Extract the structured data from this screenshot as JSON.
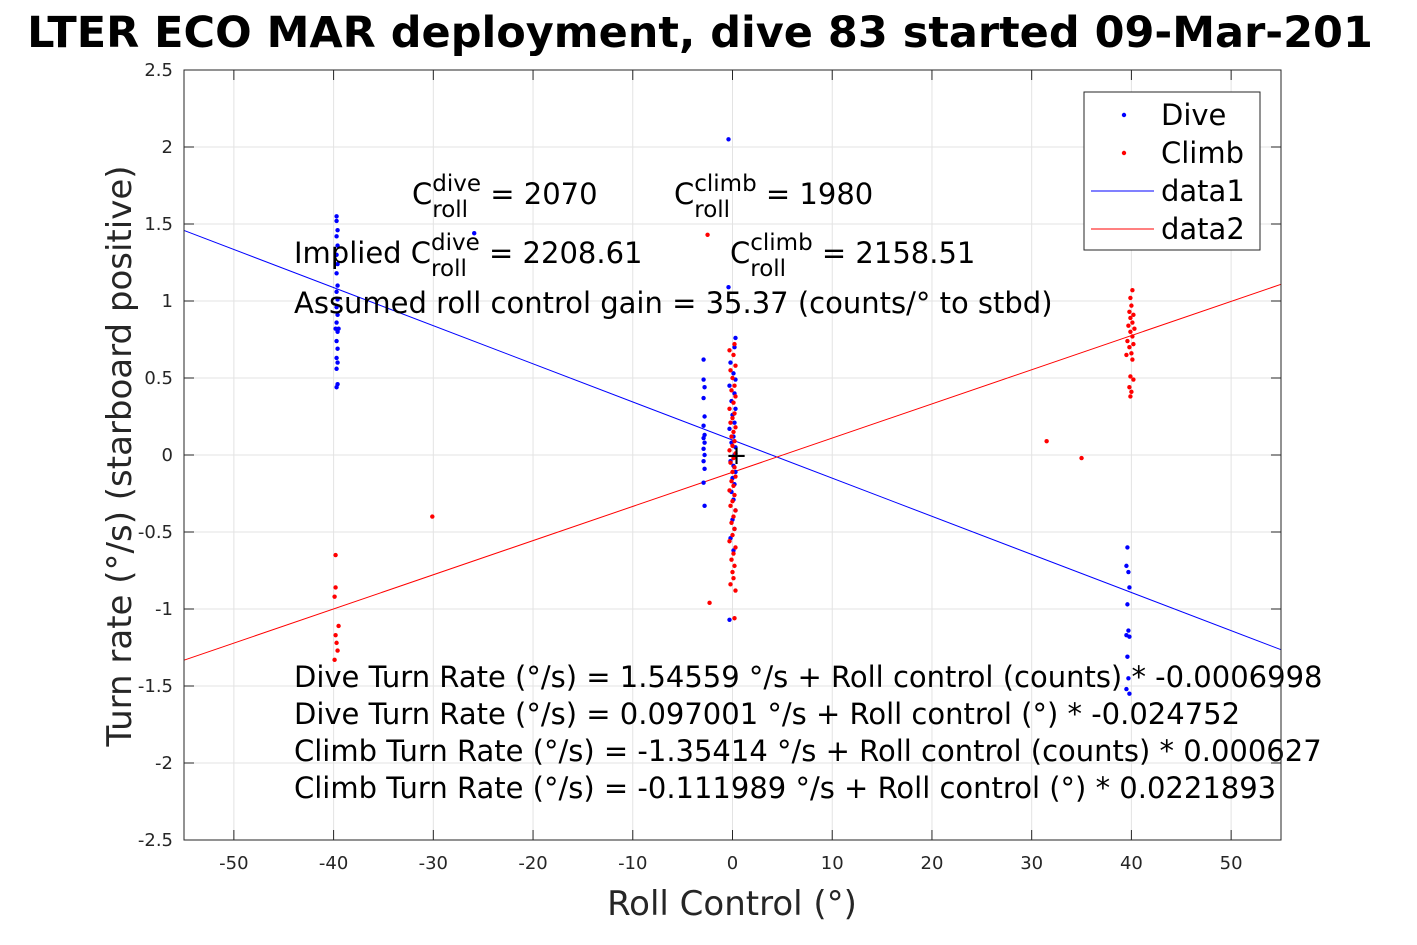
{
  "chart_data": {
    "type": "scatter",
    "title": "LTER ECO MAR deployment, dive 83 started 09-Mar-201",
    "xlabel": "Roll Control (°)",
    "ylabel": "Turn rate (°/s) (starboard positive)",
    "xlim": [
      -55,
      55
    ],
    "ylim": [
      -2.5,
      2.5
    ],
    "xticks": [
      -50,
      -40,
      -30,
      -20,
      -10,
      0,
      10,
      20,
      30,
      40,
      50
    ],
    "yticks": [
      -2.5,
      -2,
      -1.5,
      -1,
      -0.5,
      0,
      0.5,
      1,
      1.5,
      2,
      2.5
    ],
    "grid": true,
    "legend_position": "top-right",
    "series": [
      {
        "name": "Dive",
        "kind": "points",
        "color": "#0000ff",
        "points": [
          [
            -39.7,
            1.55
          ],
          [
            -39.7,
            1.52
          ],
          [
            -39.6,
            1.46
          ],
          [
            -39.7,
            1.42
          ],
          [
            -39.6,
            1.36
          ],
          [
            -39.7,
            1.3
          ],
          [
            -39.6,
            1.24
          ],
          [
            -39.7,
            1.18
          ],
          [
            -39.6,
            1.1
          ],
          [
            -39.7,
            1.06
          ],
          [
            -39.6,
            1.01
          ],
          [
            -39.7,
            0.96
          ],
          [
            -39.6,
            0.91
          ],
          [
            -39.7,
            0.86
          ],
          [
            -39.5,
            0.82
          ],
          [
            -39.8,
            0.82
          ],
          [
            -39.6,
            0.8
          ],
          [
            -39.7,
            0.74
          ],
          [
            -39.6,
            0.69
          ],
          [
            -39.7,
            0.63
          ],
          [
            -39.6,
            0.6
          ],
          [
            -39.7,
            0.56
          ],
          [
            -39.6,
            0.46
          ],
          [
            -39.7,
            0.44
          ],
          [
            -25.9,
            1.44
          ],
          [
            -2.9,
            0.62
          ],
          [
            -2.9,
            0.49
          ],
          [
            -2.8,
            0.44
          ],
          [
            -2.9,
            0.37
          ],
          [
            -2.8,
            0.25
          ],
          [
            -2.9,
            0.19
          ],
          [
            -2.8,
            0.13
          ],
          [
            -2.9,
            0.11
          ],
          [
            -2.8,
            0.08
          ],
          [
            -2.9,
            0.04
          ],
          [
            -2.8,
            0.0
          ],
          [
            -2.9,
            -0.04
          ],
          [
            -2.8,
            -0.09
          ],
          [
            -2.9,
            -0.18
          ],
          [
            -2.8,
            -0.33
          ],
          [
            -0.4,
            2.05
          ],
          [
            -0.4,
            1.09
          ],
          [
            0.3,
            0.76
          ],
          [
            0.2,
            0.7
          ],
          [
            -0.2,
            0.6
          ],
          [
            0.1,
            0.53
          ],
          [
            0.3,
            0.49
          ],
          [
            -0.3,
            0.45
          ],
          [
            0.2,
            0.4
          ],
          [
            -0.1,
            0.35
          ],
          [
            0.3,
            0.3
          ],
          [
            0.0,
            0.26
          ],
          [
            0.2,
            0.21
          ],
          [
            -0.3,
            0.17
          ],
          [
            0.1,
            0.12
          ],
          [
            -0.1,
            0.08
          ],
          [
            0.3,
            0.05
          ],
          [
            0.2,
            0.0
          ],
          [
            -0.2,
            -0.04
          ],
          [
            0.1,
            -0.07
          ],
          [
            0.3,
            -0.11
          ],
          [
            0.0,
            -0.15
          ],
          [
            0.2,
            -0.19
          ],
          [
            -0.1,
            -0.24
          ],
          [
            0.1,
            -0.29
          ],
          [
            0.3,
            -0.36
          ],
          [
            0.0,
            -0.42
          ],
          [
            0.2,
            -0.48
          ],
          [
            -0.2,
            -0.54
          ],
          [
            0.1,
            -0.62
          ],
          [
            -0.3,
            -1.07
          ],
          [
            39.6,
            -0.6
          ],
          [
            39.5,
            -0.72
          ],
          [
            39.7,
            -0.76
          ],
          [
            39.8,
            -0.86
          ],
          [
            39.6,
            -0.97
          ],
          [
            39.7,
            -1.14
          ],
          [
            39.5,
            -1.17
          ],
          [
            39.8,
            -1.18
          ],
          [
            39.6,
            -1.31
          ],
          [
            39.7,
            -1.45
          ],
          [
            39.5,
            -1.52
          ],
          [
            39.8,
            -1.55
          ]
        ]
      },
      {
        "name": "Climb",
        "kind": "points",
        "color": "#ff0000",
        "points": [
          [
            -39.8,
            -0.65
          ],
          [
            -39.8,
            -0.86
          ],
          [
            -39.9,
            -0.92
          ],
          [
            -39.5,
            -1.11
          ],
          [
            -39.8,
            -1.17
          ],
          [
            -39.7,
            -1.22
          ],
          [
            -39.6,
            -1.27
          ],
          [
            -39.9,
            -1.33
          ],
          [
            -30.1,
            -0.4
          ],
          [
            -2.5,
            1.43
          ],
          [
            -2.3,
            -0.96
          ],
          [
            0.2,
            0.72
          ],
          [
            -0.3,
            0.68
          ],
          [
            0.1,
            0.65
          ],
          [
            0.3,
            0.58
          ],
          [
            -0.2,
            0.55
          ],
          [
            0.0,
            0.5
          ],
          [
            0.2,
            0.45
          ],
          [
            -0.1,
            0.42
          ],
          [
            0.3,
            0.38
          ],
          [
            0.1,
            0.34
          ],
          [
            -0.3,
            0.3
          ],
          [
            0.2,
            0.27
          ],
          [
            0.0,
            0.24
          ],
          [
            -0.2,
            0.21
          ],
          [
            0.3,
            0.18
          ],
          [
            0.1,
            0.15
          ],
          [
            -0.1,
            0.12
          ],
          [
            0.2,
            0.09
          ],
          [
            0.0,
            0.06
          ],
          [
            -0.3,
            0.03
          ],
          [
            0.3,
            0.01
          ],
          [
            0.1,
            -0.02
          ],
          [
            -0.2,
            -0.05
          ],
          [
            0.2,
            -0.08
          ],
          [
            0.0,
            -0.11
          ],
          [
            0.3,
            -0.14
          ],
          [
            -0.1,
            -0.17
          ],
          [
            0.1,
            -0.2
          ],
          [
            -0.3,
            -0.23
          ],
          [
            0.2,
            -0.26
          ],
          [
            0.0,
            -0.3
          ],
          [
            -0.2,
            -0.33
          ],
          [
            0.3,
            -0.36
          ],
          [
            0.1,
            -0.4
          ],
          [
            -0.1,
            -0.44
          ],
          [
            0.2,
            -0.48
          ],
          [
            0.0,
            -0.52
          ],
          [
            -0.3,
            -0.56
          ],
          [
            0.3,
            -0.6
          ],
          [
            0.1,
            -0.64
          ],
          [
            -0.1,
            -0.68
          ],
          [
            0.2,
            -0.72
          ],
          [
            0.0,
            -0.76
          ],
          [
            0.1,
            -0.8
          ],
          [
            -0.2,
            -0.84
          ],
          [
            0.3,
            -0.88
          ],
          [
            0.2,
            -1.06
          ],
          [
            31.5,
            0.09
          ],
          [
            35.0,
            -0.02
          ],
          [
            40.1,
            1.07
          ],
          [
            39.9,
            1.02
          ],
          [
            40.0,
            0.97
          ],
          [
            39.8,
            0.93
          ],
          [
            40.2,
            0.91
          ],
          [
            39.9,
            0.89
          ],
          [
            40.1,
            0.86
          ],
          [
            39.7,
            0.84
          ],
          [
            40.3,
            0.82
          ],
          [
            39.9,
            0.8
          ],
          [
            40.1,
            0.77
          ],
          [
            39.6,
            0.74
          ],
          [
            40.2,
            0.72
          ],
          [
            39.8,
            0.7
          ],
          [
            40.0,
            0.66
          ],
          [
            39.5,
            0.65
          ],
          [
            40.1,
            0.62
          ],
          [
            39.9,
            0.51
          ],
          [
            40.2,
            0.49
          ],
          [
            39.8,
            0.44
          ],
          [
            40.0,
            0.41
          ],
          [
            39.9,
            0.38
          ]
        ]
      },
      {
        "name": "data1",
        "kind": "line",
        "color": "#0000ff",
        "intercept": 0.097001,
        "slope": -0.024752
      },
      {
        "name": "data2",
        "kind": "line",
        "color": "#ff0000",
        "intercept": -0.111989,
        "slope": 0.0221893
      }
    ],
    "annotations": {
      "c_roll_dive": {
        "pre": "C",
        "sup": "dive",
        "sub": "roll",
        "post": " = 2070"
      },
      "c_roll_climb": {
        "pre": "C",
        "sup": "climb",
        "sub": "roll",
        "post": " = 1980"
      },
      "implied_dive": {
        "pre": "Implied C",
        "sup": "dive",
        "sub": "roll",
        "post": " = 2208.61"
      },
      "implied_climb": {
        "pre": "C",
        "sup": "climb",
        "sub": "roll",
        "post": " = 2158.51"
      },
      "gain": "Assumed roll control gain = 35.37 (counts/° to stbd)",
      "fits": [
        "Dive Turn Rate (°/s) = 1.54559 °/s + Roll control (counts) * -0.0006998",
        "Dive Turn Rate (°/s) = 0.097001 °/s + Roll control (°) * -0.024752",
        "Climb Turn Rate (°/s) = -1.35414 °/s + Roll control (counts) * 0.000627",
        "Climb Turn Rate (°/s) = -0.111989 °/s + Roll control (°) * 0.0221893"
      ]
    },
    "marker": {
      "label": "+",
      "x": 0.4,
      "y": 0.0,
      "color": "#000000"
    }
  }
}
